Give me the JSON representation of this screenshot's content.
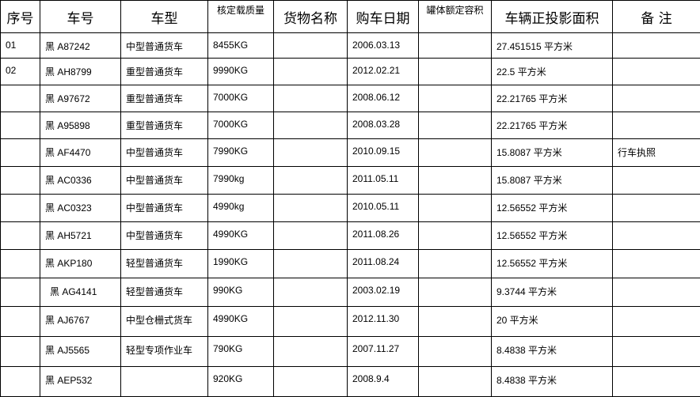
{
  "table": {
    "headers": [
      "序号",
      "车号",
      "车型",
      "核定载质量",
      "货物名称",
      "购车日期",
      "罐体额定容积",
      "车辆正投影面积",
      "备 注"
    ],
    "rows": [
      [
        "01",
        "黑 A87242",
        "中型普通货车",
        "8455KG",
        null,
        "2006.03.13",
        null,
        "27.451515 平方米",
        null
      ],
      [
        "02",
        "黑 AH8799",
        "重型普通货车",
        "9990KG",
        null,
        "2012.02.21",
        null,
        "22.5 平方米",
        null
      ],
      [
        null,
        "黑 A97672",
        "重型普通货车",
        "7000KG",
        null,
        "2008.06.12",
        null,
        "22.21765 平方米",
        null
      ],
      [
        null,
        "黑 A95898",
        "重型普通货车",
        "7000KG",
        null,
        "2008.03.28",
        null,
        "22.21765 平方米",
        null
      ],
      [
        null,
        "黑 AF4470",
        "中型普通货车",
        "7990KG",
        null,
        "2010.09.15",
        null,
        "15.8087 平方米",
        "行车执照"
      ],
      [
        null,
        "黑 AC0336",
        "中型普通货车",
        "7990kg",
        null,
        "2011.05.11",
        null,
        "15.8087 平方米",
        null
      ],
      [
        null,
        "黑 AC0323",
        "中型普通货车",
        "4990kg",
        null,
        "2010.05.11",
        null,
        "12.56552 平方米",
        null
      ],
      [
        null,
        "黑 AH5721",
        "中型普通货车",
        "4990KG",
        null,
        "2011.08.26",
        null,
        "12.56552 平方米",
        null
      ],
      [
        null,
        "黑 AKP180",
        "轻型普通货车",
        "1990KG",
        null,
        "2011.08.24",
        null,
        "12.56552 平方米",
        null
      ],
      [
        null,
        "黑 AG4141",
        "轻型普通货车",
        "990KG",
        null,
        "2003.02.19",
        null,
        "9.3744 平方米",
        null
      ],
      [
        null,
        "黑 AJ6767",
        "中型仓栅式货车",
        "4990KG",
        null,
        "2012.11.30",
        null,
        "20 平方米",
        null
      ],
      [
        null,
        "黑 AJ5565",
        "轻型专项作业车",
        "790KG",
        null,
        "2007.11.27",
        null,
        "8.4838 平方米",
        null
      ],
      [
        null,
        "黑 AEP532",
        null,
        "920KG",
        null,
        "2008.9.4",
        null,
        "8.4838 平方米",
        null
      ]
    ]
  }
}
